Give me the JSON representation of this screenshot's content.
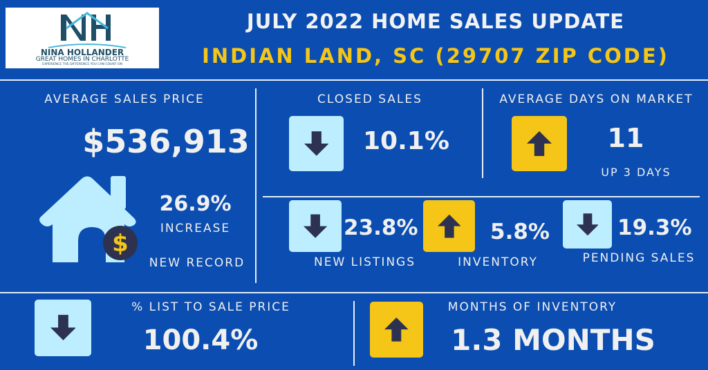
{
  "logo": {
    "name": "NINA HOLLANDER",
    "tagline": "GREAT HOMES IN CHARLOTTE",
    "slogan": "EXPERIENCE THE DIFFERENCE YOU CAN COUNT ON"
  },
  "header": {
    "title": "JULY 2022 HOME SALES UPDATE",
    "subtitle": "INDIAN LAND, SC (29707 ZIP CODE)"
  },
  "avg_price": {
    "label": "AVERAGE SALES PRICE",
    "value": "$536,913",
    "change": "26.9%",
    "change_label": "INCREASE",
    "note": "NEW RECORD"
  },
  "closed": {
    "label": "CLOSED SALES",
    "value": "10.1%",
    "direction": "down"
  },
  "dom": {
    "label": "AVERAGE DAYS ON MARKET",
    "value": "11",
    "note": "UP 3 DAYS",
    "direction": "up"
  },
  "new_listings": {
    "label": "NEW LISTINGS",
    "value": "23.8%",
    "direction": "down"
  },
  "inventory": {
    "label": "INVENTORY",
    "value": "5.8%",
    "direction": "up"
  },
  "pending": {
    "label": "PENDING SALES",
    "value": "19.3%",
    "direction": "down"
  },
  "list_to_sale": {
    "label": "% LIST TO SALE PRICE",
    "value": "100.4%",
    "direction": "down"
  },
  "months": {
    "label": "MONTHS OF INVENTORY",
    "value": "1.3 MONTHS",
    "direction": "up"
  },
  "colors": {
    "background": "#0b4db0",
    "accent": "#f5c518",
    "down_box": "#bdeeff",
    "arrow": "#2d3250"
  }
}
